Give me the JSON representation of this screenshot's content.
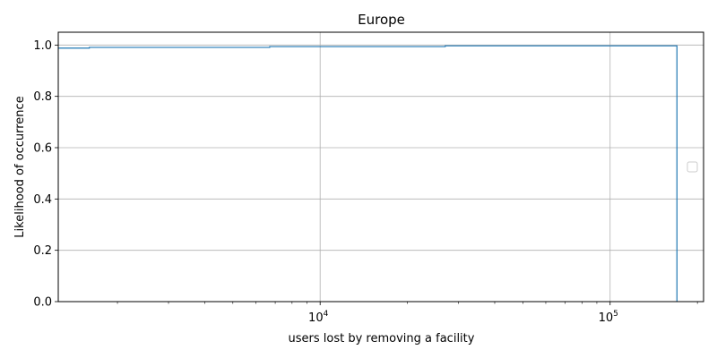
{
  "chart_data": {
    "type": "line",
    "title": "Europe",
    "xlabel": "users lost by removing a facility",
    "ylabel": "Likelihood of occurrence",
    "x_scale": "log",
    "xlim": [
      1250,
      210000
    ],
    "ylim": [
      0,
      1.05
    ],
    "grid": true,
    "legend": {
      "placement": "center-right",
      "entries": []
    },
    "x_ticks": [
      {
        "base": "10",
        "exp": "4",
        "value": 10000
      },
      {
        "base": "10",
        "exp": "5",
        "value": 100000
      }
    ],
    "y_ticks": [
      "0.0",
      "0.2",
      "0.4",
      "0.6",
      "0.8",
      "1.0"
    ],
    "y_tick_values": [
      0,
      0.2,
      0.4,
      0.6,
      0.8,
      1.0
    ],
    "series": [
      {
        "drawstyle": "steps-post",
        "color": "#1f77b4",
        "x": [
          1250,
          1600,
          6700,
          27000,
          170000,
          170000
        ],
        "y": [
          0.988,
          0.991,
          0.994,
          0.997,
          0.997,
          0.0
        ]
      }
    ]
  }
}
